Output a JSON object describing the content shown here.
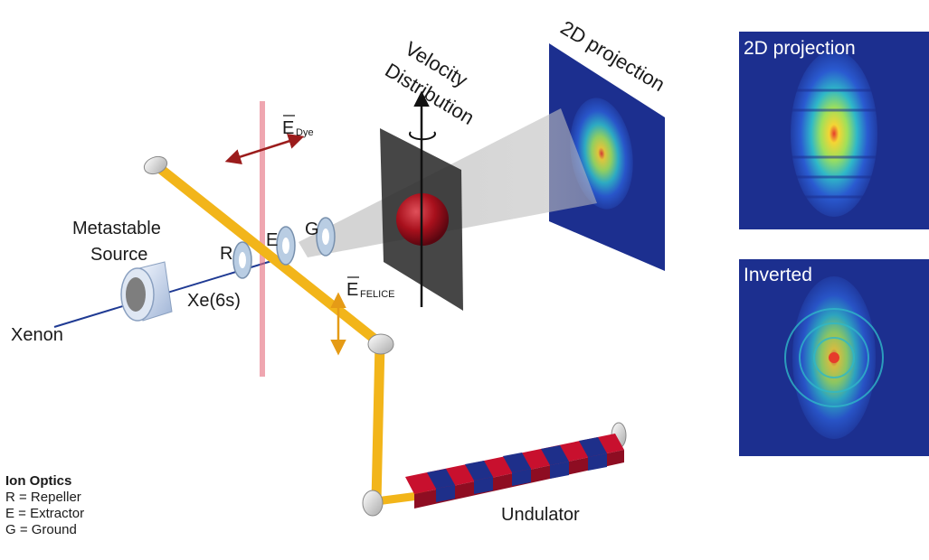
{
  "labels": {
    "two_d_projection_main": "2D projection",
    "velocity": "Velocity",
    "distribution": "Distribution",
    "e_dye_sub": "Dye",
    "e_felice_sub": "FELICE",
    "e_symbol": "E",
    "metastable": "Metastable",
    "source": "Source",
    "xenon": "Xenon",
    "xe6s": "Xe(6s)",
    "plate_r": "R",
    "plate_e": "E",
    "plate_g": "G",
    "undulator": "Undulator"
  },
  "panels": {
    "top_title": "2D projection",
    "bottom_title": "Inverted"
  },
  "legend": {
    "title": "Ion Optics",
    "items": [
      "R = Repeller",
      "E = Extractor",
      "G = Ground"
    ]
  },
  "colors": {
    "laser_beam": "#f2b51a",
    "xenon_beam": "#1f3a93",
    "dye_laser": "#e46a7c",
    "dye_arrow": "#9b1c1c",
    "felice_arrow": "#e59b16",
    "detector_bg": "#1c2f8f",
    "undulator_red": "#c8102e",
    "undulator_blue": "#1e2f8a"
  }
}
